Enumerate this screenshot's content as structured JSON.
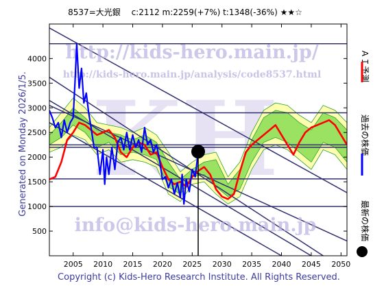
{
  "header": {
    "title": "8537=大光銀　 c:2112  m:2259(+7%)  t:1348(-36%)  ★★☆"
  },
  "side_label": "Generated on Monday 2026/1/5.",
  "footer": "Copyright (c) Kids-Hero Research Institute. All Rights Reserved.",
  "watermarks": {
    "url": "http://kids-hero.main.jp/",
    "analysis_url": "http://kids-hero.main.jp/analysis/code8537.html",
    "email": "info@kids-hero.main.jp"
  },
  "legend": [
    {
      "label": "ＡＩ予測",
      "color": "#ff0000",
      "marker": "line"
    },
    {
      "label": "過去の株価",
      "color": "#0000ff",
      "marker": "line"
    },
    {
      "label": "最新の株価",
      "color": "#000000",
      "marker": "dot"
    }
  ],
  "colors": {
    "band_outer": "#ffffb0",
    "band_inner": "#7ad84a",
    "band_lines": "#2ca02c",
    "trend_lines": "#2e2e6e",
    "h_lines": "#303070"
  },
  "chart_data": {
    "type": "line",
    "title": "8537=大光銀　 c:2112  m:2259(+7%)  t:1348(-36%)  ★★☆",
    "xlabel": "",
    "ylabel": "",
    "xlim": [
      2001,
      2051
    ],
    "ylim": [
      0,
      4700
    ],
    "x_ticks": [
      2005,
      2010,
      2015,
      2020,
      2025,
      2030,
      2035,
      2040,
      2045,
      2050
    ],
    "y_ticks": [
      500,
      1000,
      1500,
      2000,
      2500,
      3000,
      3500,
      4000
    ],
    "grid": false,
    "latest": {
      "year": 2026.0,
      "value": 2112
    },
    "horizontal_levels": [
      4300,
      2900,
      2250,
      2200,
      1560,
      1000
    ],
    "trend_lines": [
      {
        "from": [
          2001,
          4620
        ],
        "to": [
          2051,
          1280
        ]
      },
      {
        "from": [
          2001,
          3620
        ],
        "to": [
          2047,
          0
        ]
      },
      {
        "from": [
          2001,
          3150
        ],
        "to": [
          2045,
          0
        ]
      },
      {
        "from": [
          2001,
          3050
        ],
        "to": [
          2051,
          300
        ]
      },
      {
        "from": [
          2001,
          2700
        ],
        "to": [
          2040,
          0
        ]
      }
    ],
    "series": [
      {
        "name": "過去の株価",
        "color": "#0000ff",
        "x": [
          2001.0,
          2001.5,
          2002.0,
          2002.5,
          2003.0,
          2003.5,
          2004.0,
          2004.5,
          2005.0,
          2005.3,
          2005.6,
          2006.0,
          2006.4,
          2006.8,
          2007.2,
          2007.6,
          2008.0,
          2008.5,
          2009.0,
          2009.5,
          2010.0,
          2010.3,
          2010.6,
          2011.0,
          2011.5,
          2012.0,
          2012.5,
          2013.0,
          2013.5,
          2014.0,
          2014.5,
          2015.0,
          2015.5,
          2016.0,
          2016.5,
          2017.0,
          2017.5,
          2018.0,
          2018.5,
          2019.0,
          2019.5,
          2020.0,
          2020.5,
          2021.0,
          2021.5,
          2022.0,
          2022.5,
          2023.0,
          2023.3,
          2023.6,
          2024.0,
          2024.5,
          2025.0,
          2025.5,
          2026.0
        ],
        "values": [
          2950,
          2800,
          2600,
          2700,
          2400,
          2750,
          2500,
          2700,
          2800,
          3500,
          4300,
          3400,
          3800,
          3100,
          3300,
          2900,
          2600,
          2200,
          2200,
          1650,
          2150,
          1450,
          2000,
          1650,
          2200,
          1750,
          2300,
          2400,
          2150,
          2500,
          2150,
          2450,
          2200,
          2350,
          2100,
          2600,
          2250,
          2350,
          2100,
          2250,
          1950,
          1550,
          1600,
          1380,
          1550,
          1250,
          1480,
          1180,
          1650,
          1050,
          1550,
          1300,
          1750,
          1600,
          2100
        ]
      },
      {
        "name": "ＡＩ予測",
        "color": "#ff0000",
        "x": [
          2001,
          2002,
          2003,
          2004,
          2005,
          2006,
          2007,
          2008,
          2009,
          2010,
          2011,
          2012,
          2013,
          2014,
          2015,
          2016,
          2017,
          2018,
          2019,
          2020,
          2021,
          2022,
          2023,
          2024,
          2025,
          2026,
          2027,
          2028,
          2029,
          2030,
          2031,
          2032,
          2033,
          2034,
          2035,
          2036,
          2037,
          2038,
          2039,
          2040,
          2041,
          2042,
          2043,
          2044,
          2045,
          2046,
          2047,
          2048,
          2049,
          2050,
          2051
        ],
        "values": [
          1550,
          1600,
          1900,
          2350,
          2500,
          2700,
          2650,
          2550,
          2450,
          2500,
          2550,
          2400,
          2100,
          2000,
          2200,
          2300,
          2250,
          2050,
          2100,
          1800,
          1550,
          1450,
          1500,
          1400,
          1600,
          1720,
          1800,
          1650,
          1350,
          1200,
          1150,
          1250,
          1700,
          2100,
          2250,
          2350,
          2450,
          2550,
          2650,
          2450,
          2250,
          2050,
          2300,
          2500,
          2600,
          2650,
          2700,
          2750,
          2650,
          2450,
          2250
        ]
      }
    ],
    "band": {
      "x": [
        2001,
        2003,
        2005,
        2007,
        2009,
        2011,
        2013,
        2015,
        2017,
        2019,
        2021,
        2023,
        2025,
        2027,
        2029,
        2031,
        2033,
        2035,
        2037,
        2039,
        2041,
        2043,
        2045,
        2047,
        2049,
        2051
      ],
      "upper": [
        2600,
        2900,
        3200,
        3000,
        2700,
        2650,
        2600,
        2500,
        2600,
        2450,
        2100,
        1700,
        1900,
        2050,
        2100,
        1600,
        1900,
        2500,
        2950,
        3100,
        3050,
        2850,
        2700,
        3050,
        2950,
        2700
      ],
      "lower": [
        2100,
        2200,
        2450,
        2350,
        2050,
        2150,
        1900,
        1950,
        1900,
        1800,
        1250,
        1100,
        1450,
        1500,
        1250,
        1050,
        1200,
        1750,
        2150,
        2250,
        2150,
        1950,
        1750,
        2150,
        2050,
        1750
      ],
      "inner_upper": [
        2450,
        2700,
        3000,
        2800,
        2550,
        2500,
        2450,
        2350,
        2450,
        2300,
        1900,
        1550,
        1750,
        1900,
        1950,
        1450,
        1750,
        2350,
        2800,
        2950,
        2900,
        2700,
        2550,
        2900,
        2800,
        2550
      ],
      "inner_lower": [
        2250,
        2400,
        2650,
        2500,
        2200,
        2300,
        2050,
        2100,
        2050,
        1950,
        1400,
        1250,
        1600,
        1650,
        1400,
        1200,
        1350,
        1900,
        2300,
        2400,
        2300,
        2100,
        1900,
        2300,
        2200,
        1900
      ]
    }
  }
}
